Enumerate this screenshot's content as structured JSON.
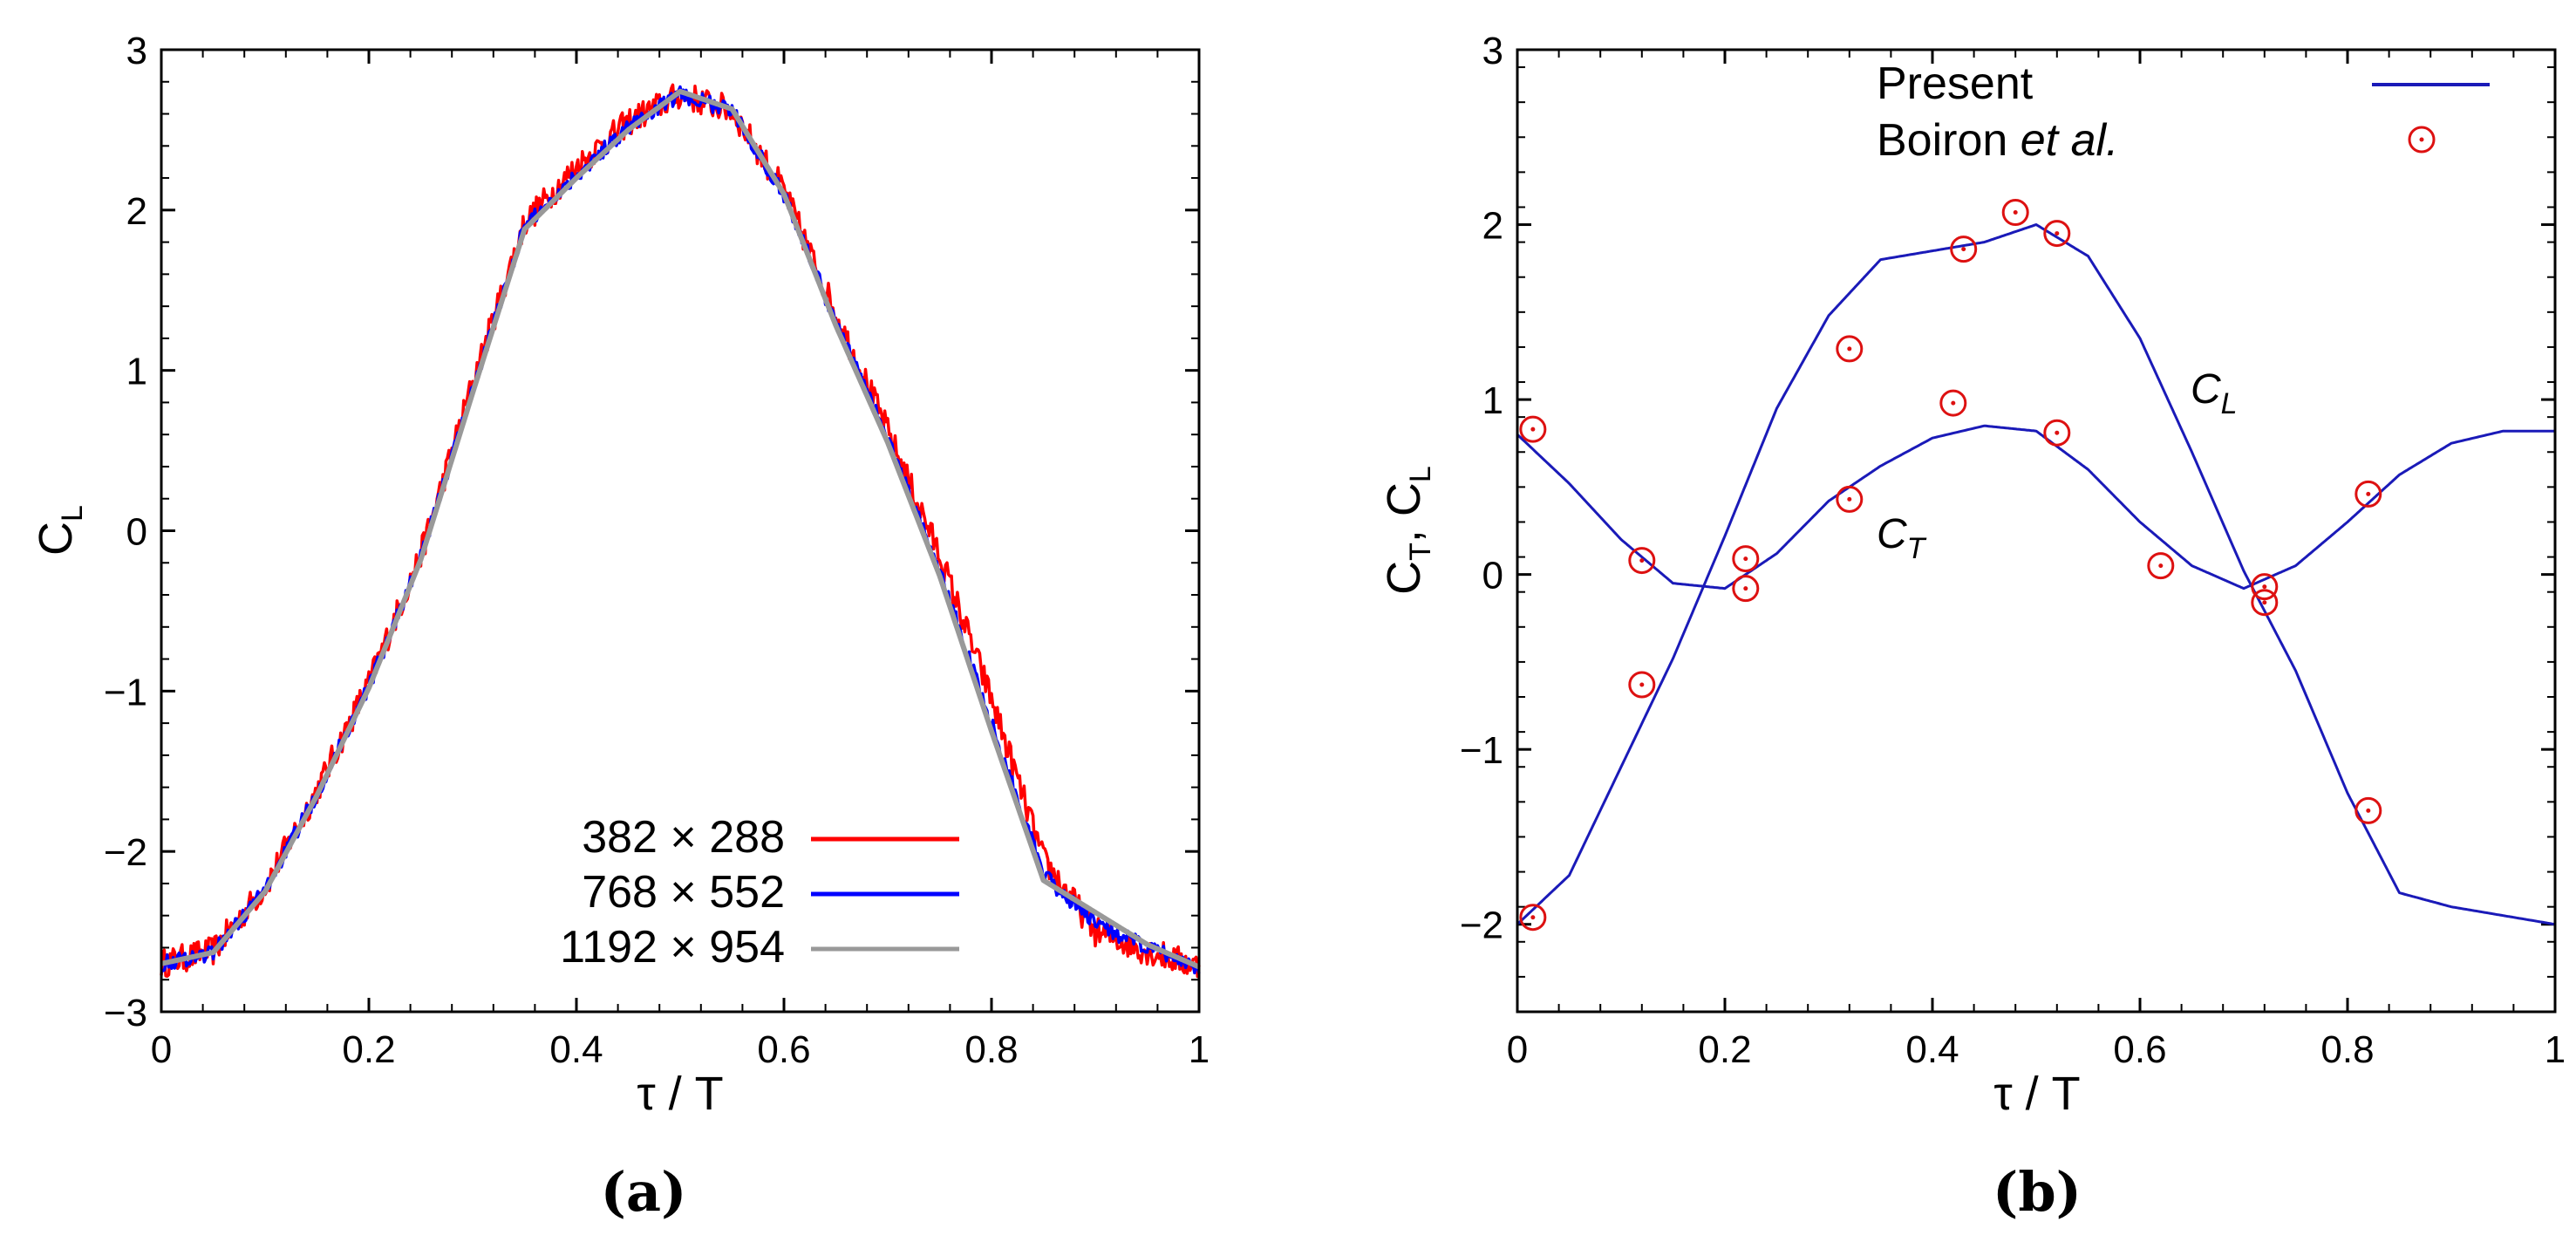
{
  "colors": {
    "grid_382": "#ff0000",
    "grid_768": "#0000ff",
    "grid_1192": "#999999",
    "present": "#1a1ab8",
    "boiron": "#dd1111"
  },
  "chart_data": [
    {
      "type": "line",
      "panel_label": "(a)",
      "title": "",
      "xlabel": "τ / T",
      "ylabel_main": "C",
      "ylabel_sub": "L",
      "xlim": [
        0,
        1
      ],
      "ylim": [
        -3,
        3
      ],
      "x_ticks": [
        0,
        0.2,
        0.4,
        0.6,
        0.8,
        1
      ],
      "x_tick_labels": [
        "0",
        "0.2",
        "0.4",
        "0.6",
        "0.8",
        "1"
      ],
      "y_ticks": [
        -3,
        -2,
        -1,
        0,
        1,
        2,
        3
      ],
      "y_tick_labels": [
        "−3",
        "−2",
        "−1",
        "0",
        "1",
        "2",
        "3"
      ],
      "legend_position": "bottom-right",
      "x": [
        0,
        0.05,
        0.1,
        0.15,
        0.2,
        0.25,
        0.3,
        0.35,
        0.4,
        0.45,
        0.5,
        0.55,
        0.6,
        0.65,
        0.7,
        0.75,
        0.8,
        0.85,
        0.9,
        0.95,
        1
      ],
      "series": [
        {
          "name": "382 × 288",
          "color_key": "grid_382",
          "noise": 0.09,
          "values": [
            -2.7,
            -2.62,
            -2.22,
            -1.62,
            -0.95,
            -0.15,
            0.92,
            1.92,
            2.27,
            2.55,
            2.72,
            2.62,
            2.12,
            1.35,
            0.62,
            -0.15,
            -1.05,
            -2.05,
            -2.5,
            -2.62,
            -2.72
          ]
        },
        {
          "name": "768 × 552",
          "color_key": "grid_768",
          "noise": 0.05,
          "values": [
            -2.7,
            -2.63,
            -2.24,
            -1.64,
            -0.97,
            -0.17,
            0.88,
            1.9,
            2.22,
            2.52,
            2.72,
            2.62,
            2.1,
            1.3,
            0.58,
            -0.25,
            -1.2,
            -2.15,
            -2.45,
            -2.6,
            -2.72
          ]
        },
        {
          "name": "1192 × 954",
          "color_key": "grid_1192",
          "noise": 0.0,
          "values": [
            -2.7,
            -2.63,
            -2.25,
            -1.65,
            -0.98,
            -0.18,
            0.86,
            1.88,
            2.2,
            2.5,
            2.74,
            2.63,
            2.1,
            1.28,
            0.55,
            -0.28,
            -1.25,
            -2.18,
            -2.38,
            -2.58,
            -2.72
          ]
        }
      ]
    },
    {
      "type": "line",
      "panel_label": "(b)",
      "title": "",
      "xlabel": "τ / T",
      "ylabel_parts": [
        "C",
        "T",
        ", C",
        "L"
      ],
      "xlim": [
        0,
        1
      ],
      "ylim": [
        -2.5,
        3
      ],
      "x_ticks": [
        0,
        0.2,
        0.4,
        0.6,
        0.8,
        1
      ],
      "x_tick_labels": [
        "0",
        "0.2",
        "0.4",
        "0.6",
        "0.8",
        "1"
      ],
      "y_ticks": [
        -2,
        -1,
        0,
        1,
        2,
        3
      ],
      "y_tick_labels": [
        "−2",
        "−1",
        "0",
        "1",
        "2",
        "3"
      ],
      "legend_position": "top-right",
      "legend": {
        "present": "Present",
        "boiron_name": "Boiron ",
        "boiron_etal": "et al."
      },
      "annotations": [
        {
          "id": "cl",
          "text": "C",
          "sub": "L",
          "at": [
            0.65,
            0.45
          ]
        },
        {
          "id": "ct",
          "text": "C",
          "sub": "T",
          "at": [
            0.35,
            0.05
          ]
        }
      ],
      "x": [
        0,
        0.05,
        0.1,
        0.15,
        0.2,
        0.25,
        0.3,
        0.35,
        0.4,
        0.45,
        0.5,
        0.55,
        0.6,
        0.65,
        0.7,
        0.75,
        0.8,
        0.85,
        0.9,
        0.95,
        1
      ],
      "series": [
        {
          "name": "Present C_L",
          "color_key": "present",
          "values": [
            -2.0,
            -1.72,
            -1.1,
            -0.48,
            0.22,
            0.95,
            1.48,
            1.8,
            1.85,
            1.9,
            2.0,
            1.82,
            1.35,
            0.7,
            0.02,
            -0.55,
            -1.25,
            -1.82,
            -1.9,
            -1.95,
            -2.0
          ]
        },
        {
          "name": "Present C_T",
          "color_key": "present",
          "values": [
            0.8,
            0.52,
            0.2,
            -0.05,
            -0.08,
            0.12,
            0.42,
            0.62,
            0.78,
            0.85,
            0.82,
            0.6,
            0.3,
            0.05,
            -0.08,
            0.05,
            0.3,
            0.57,
            0.75,
            0.82,
            0.82
          ]
        },
        {
          "name": "Boiron et al.",
          "color_key": "boiron",
          "type": "scatter",
          "points": [
            [
              0.015,
              0.83
            ],
            [
              0.12,
              0.08
            ],
            [
              0.22,
              0.09
            ],
            [
              0.32,
              0.43
            ],
            [
              0.42,
              0.98
            ],
            [
              0.52,
              0.81
            ],
            [
              0.62,
              0.05
            ],
            [
              0.72,
              -0.07
            ],
            [
              0.82,
              0.46
            ],
            [
              0.015,
              -1.96
            ],
            [
              0.12,
              -0.63
            ],
            [
              0.22,
              -0.08
            ],
            [
              0.32,
              1.29
            ],
            [
              0.43,
              1.86
            ],
            [
              0.48,
              2.07
            ],
            [
              0.52,
              1.95
            ],
            [
              0.72,
              -0.16
            ],
            [
              0.82,
              -1.35
            ]
          ]
        }
      ]
    }
  ]
}
